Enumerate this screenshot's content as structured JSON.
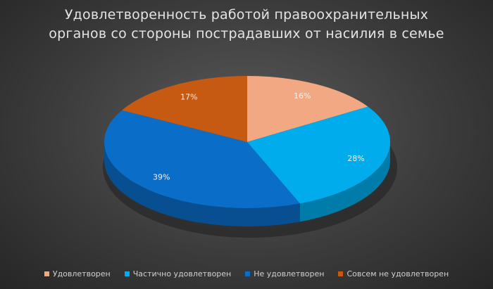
{
  "chart_data": {
    "type": "pie",
    "title_lines": [
      "Удовлетворенность работой правоохранительных",
      "органов со стороны пострадавших от насилия в семье"
    ],
    "slices": [
      {
        "label": "Удовлетворен",
        "value": 16,
        "value_label": "16%",
        "color": "#f2a882"
      },
      {
        "label": "Частично удовлетворен",
        "value": 28,
        "value_label": "28%",
        "color": "#00acec"
      },
      {
        "label": "Не удовлетворен",
        "value": 39,
        "value_label": "39%",
        "color": "#0a6ec8"
      },
      {
        "label": "Совсем не удовлетворен",
        "value": 17,
        "value_label": "17%",
        "color": "#c65a12"
      }
    ],
    "legend_position": "bottom",
    "style": "3d"
  }
}
